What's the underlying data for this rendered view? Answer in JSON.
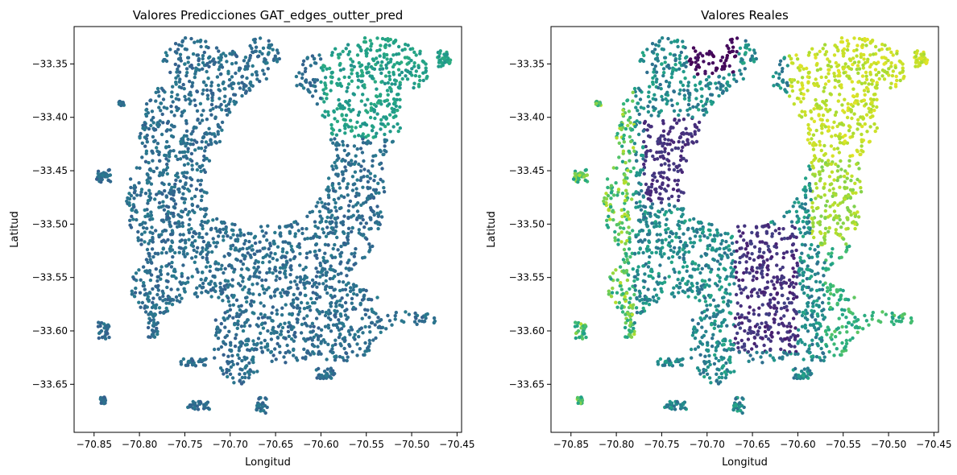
{
  "chart_data": [
    {
      "type": "scatter",
      "title": "Valores Predicciones GAT_edges_outter_pred",
      "xlabel": "Longitud",
      "ylabel": "Latitud",
      "xlim": [
        -70.872,
        -70.445
      ],
      "ylim": [
        -33.695,
        -33.315
      ],
      "xticks": [
        -70.85,
        -70.8,
        -70.75,
        -70.7,
        -70.65,
        -70.6,
        -70.55,
        -70.5,
        -70.45
      ],
      "xtick_labels": [
        "−70.85",
        "−70.80",
        "−70.75",
        "−70.70",
        "−70.65",
        "−70.60",
        "−70.55",
        "−70.50",
        "−70.45"
      ],
      "yticks": [
        -33.35,
        -33.4,
        -33.45,
        -33.5,
        -33.55,
        -33.6,
        -33.65
      ],
      "ytick_labels": [
        "−33.35",
        "−33.40",
        "−33.45",
        "−33.50",
        "−33.55",
        "−33.60",
        "−33.65"
      ],
      "colormap": "viridis",
      "color_scheme": "predicted",
      "grid": false
    },
    {
      "type": "scatter",
      "title": "Valores Reales",
      "xlabel": "Longitud",
      "ylabel": "Latitud",
      "xlim": [
        -70.872,
        -70.445
      ],
      "ylim": [
        -33.695,
        -33.315
      ],
      "xticks": [
        -70.85,
        -70.8,
        -70.75,
        -70.7,
        -70.65,
        -70.6,
        -70.55,
        -70.5,
        -70.45
      ],
      "xtick_labels": [
        "−70.85",
        "−70.80",
        "−70.75",
        "−70.70",
        "−70.65",
        "−70.60",
        "−70.55",
        "−70.50",
        "−70.45"
      ],
      "yticks": [
        -33.35,
        -33.4,
        -33.45,
        -33.5,
        -33.55,
        -33.6,
        -33.65
      ],
      "ytick_labels": [
        "−33.35",
        "−33.40",
        "−33.45",
        "−33.50",
        "−33.55",
        "−33.60",
        "−33.65"
      ],
      "colormap": "viridis",
      "color_scheme": "real",
      "grid": false
    }
  ]
}
